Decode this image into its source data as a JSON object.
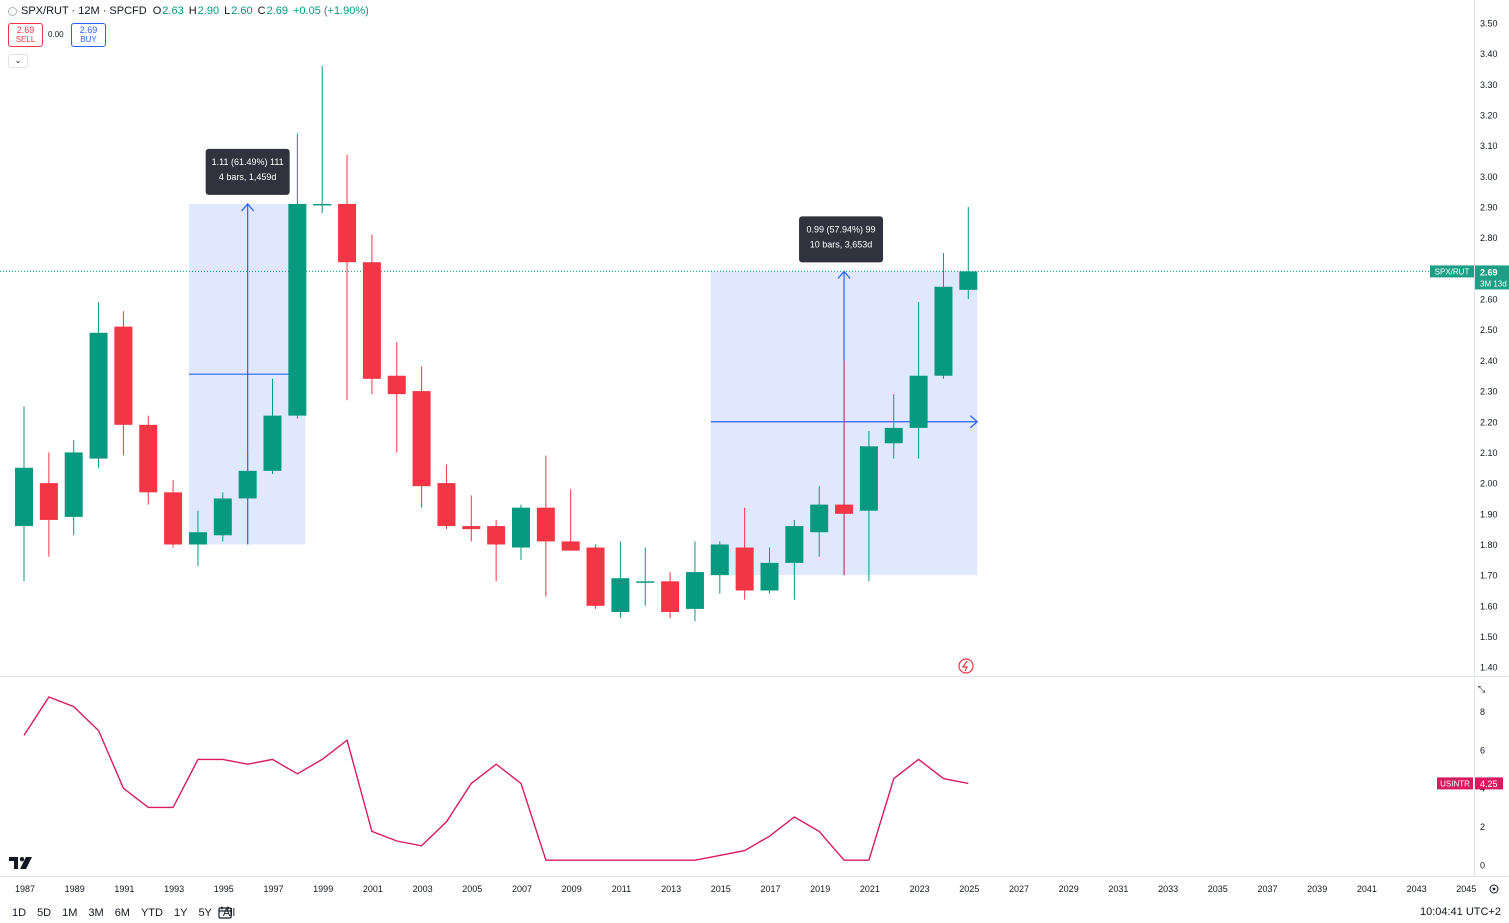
{
  "legend": {
    "symbol": "SPX/RUT · 12M · SPCFD",
    "o_label": "O",
    "o_value": "2.63",
    "h_label": "H",
    "h_value": "2.90",
    "l_label": "L",
    "l_value": "2.60",
    "c_label": "C",
    "c_value": "2.69",
    "change": "+0.05 (+1.90%)"
  },
  "trade": {
    "sell_price": "2.69",
    "sell_label": "SELL",
    "spread": "0.00",
    "buy_price": "2.69",
    "buy_label": "BUY"
  },
  "collapse_glyph": "⌄",
  "timeframes": [
    "1D",
    "5D",
    "1M",
    "3M",
    "6M",
    "YTD",
    "1Y",
    "5Y",
    "All"
  ],
  "clock": "10:04:41 UTC+2",
  "colors": {
    "up": "#089981",
    "down": "#f23645",
    "indicator": "#d81b60",
    "measure_fill": "#dde6fd",
    "measure_line": "#2962ff",
    "tag": "#1e9e85"
  },
  "chart_data": [
    {
      "type": "candlestick",
      "series_name": "SPX/RUT",
      "x_unit": "year",
      "candles": [
        {
          "x": 1987,
          "o": 1.86,
          "h": 2.25,
          "l": 1.68,
          "c": 2.05
        },
        {
          "x": 1988,
          "o": 2.0,
          "h": 2.1,
          "l": 1.76,
          "c": 1.88
        },
        {
          "x": 1989,
          "o": 1.89,
          "h": 2.14,
          "l": 1.83,
          "c": 2.1
        },
        {
          "x": 1990,
          "o": 2.08,
          "h": 2.59,
          "l": 2.05,
          "c": 2.49
        },
        {
          "x": 1991,
          "o": 2.51,
          "h": 2.56,
          "l": 2.09,
          "c": 2.19
        },
        {
          "x": 1992,
          "o": 2.19,
          "h": 2.22,
          "l": 1.93,
          "c": 1.97
        },
        {
          "x": 1993,
          "o": 1.97,
          "h": 2.01,
          "l": 1.79,
          "c": 1.8
        },
        {
          "x": 1994,
          "o": 1.8,
          "h": 1.91,
          "l": 1.73,
          "c": 1.84
        },
        {
          "x": 1995,
          "o": 1.83,
          "h": 1.97,
          "l": 1.81,
          "c": 1.95
        },
        {
          "x": 1996,
          "o": 1.95,
          "h": 2.1,
          "l": 1.8,
          "c": 2.04
        },
        {
          "x": 1997,
          "o": 2.04,
          "h": 2.34,
          "l": 2.03,
          "c": 2.22
        },
        {
          "x": 1998,
          "o": 2.22,
          "h": 3.14,
          "l": 2.21,
          "c": 2.91
        },
        {
          "x": 1999,
          "o": 2.91,
          "h": 3.36,
          "l": 2.88,
          "c": 2.91
        },
        {
          "x": 2000,
          "o": 2.91,
          "h": 3.07,
          "l": 2.27,
          "c": 2.72
        },
        {
          "x": 2001,
          "o": 2.72,
          "h": 2.81,
          "l": 2.29,
          "c": 2.34
        },
        {
          "x": 2002,
          "o": 2.35,
          "h": 2.46,
          "l": 2.1,
          "c": 2.29
        },
        {
          "x": 2003,
          "o": 2.3,
          "h": 2.38,
          "l": 1.92,
          "c": 1.99
        },
        {
          "x": 2004,
          "o": 2.0,
          "h": 2.06,
          "l": 1.85,
          "c": 1.86
        },
        {
          "x": 2005,
          "o": 1.86,
          "h": 1.96,
          "l": 1.81,
          "c": 1.85
        },
        {
          "x": 2006,
          "o": 1.86,
          "h": 1.88,
          "l": 1.68,
          "c": 1.8
        },
        {
          "x": 2007,
          "o": 1.79,
          "h": 1.93,
          "l": 1.75,
          "c": 1.92
        },
        {
          "x": 2008,
          "o": 1.92,
          "h": 2.09,
          "l": 1.63,
          "c": 1.81
        },
        {
          "x": 2009,
          "o": 1.81,
          "h": 1.98,
          "l": 1.78,
          "c": 1.78
        },
        {
          "x": 2010,
          "o": 1.79,
          "h": 1.8,
          "l": 1.59,
          "c": 1.6
        },
        {
          "x": 2011,
          "o": 1.58,
          "h": 1.81,
          "l": 1.56,
          "c": 1.69
        },
        {
          "x": 2012,
          "o": 1.68,
          "h": 1.79,
          "l": 1.6,
          "c": 1.68
        },
        {
          "x": 2013,
          "o": 1.68,
          "h": 1.71,
          "l": 1.56,
          "c": 1.58
        },
        {
          "x": 2014,
          "o": 1.59,
          "h": 1.81,
          "l": 1.55,
          "c": 1.71
        },
        {
          "x": 2015,
          "o": 1.7,
          "h": 1.81,
          "l": 1.64,
          "c": 1.8
        },
        {
          "x": 2016,
          "o": 1.79,
          "h": 1.92,
          "l": 1.62,
          "c": 1.65
        },
        {
          "x": 2017,
          "o": 1.65,
          "h": 1.79,
          "l": 1.64,
          "c": 1.74
        },
        {
          "x": 2018,
          "o": 1.74,
          "h": 1.88,
          "l": 1.62,
          "c": 1.86
        },
        {
          "x": 2019,
          "o": 1.84,
          "h": 1.99,
          "l": 1.76,
          "c": 1.93
        },
        {
          "x": 2020,
          "o": 1.93,
          "h": 2.4,
          "l": 1.7,
          "c": 1.9
        },
        {
          "x": 2021,
          "o": 1.91,
          "h": 2.17,
          "l": 1.68,
          "c": 2.12
        },
        {
          "x": 2022,
          "o": 2.13,
          "h": 2.29,
          "l": 2.08,
          "c": 2.18
        },
        {
          "x": 2023,
          "o": 2.18,
          "h": 2.59,
          "l": 2.08,
          "c": 2.35
        },
        {
          "x": 2024,
          "o": 2.35,
          "h": 2.75,
          "l": 2.34,
          "c": 2.64
        },
        {
          "x": 2025,
          "o": 2.63,
          "h": 2.9,
          "l": 2.6,
          "c": 2.69
        }
      ],
      "y_ticks": [
        "1.40",
        "1.50",
        "1.60",
        "1.70",
        "1.80",
        "1.90",
        "2.00",
        "2.10",
        "2.20",
        "2.30",
        "2.40",
        "2.50",
        "2.60",
        "2.70",
        "2.80",
        "2.90",
        "3.00",
        "3.10",
        "3.20",
        "3.30",
        "3.40",
        "3.50"
      ],
      "ylim": [
        1.35,
        3.55
      ],
      "x_ticks": [
        "1987",
        "1989",
        "1991",
        "1993",
        "1995",
        "1997",
        "1999",
        "2001",
        "2003",
        "2005",
        "2007",
        "2009",
        "2011",
        "2013",
        "2015",
        "2017",
        "2019",
        "2021",
        "2023",
        "2025",
        "2027",
        "2029",
        "2031",
        "2033",
        "2035",
        "2037",
        "2039",
        "2041",
        "2043",
        "2045"
      ],
      "xlim": [
        1986.5,
        2046.3
      ],
      "last_price_tag": {
        "symbol": "SPX/RUT",
        "value": "2.69",
        "countdown": "3M 13d",
        "y": 2.69
      },
      "measurements": [
        {
          "x_start": 1994,
          "x_end": 1997.95,
          "y_low": 1.8,
          "y_high": 2.91,
          "x_arrow": 1996,
          "line1": "1.11 (61.49%) 111",
          "line2": "4 bars, 1,459d"
        },
        {
          "x_start": 2015,
          "x_end": 2025,
          "y_low": 1.7,
          "y_high": 2.69,
          "x_arrow": 2020,
          "y_horizontal": 2.2,
          "line1": "0.99 (57.94%) 99",
          "line2": "10 bars, 3,653d"
        }
      ]
    },
    {
      "type": "line",
      "series_name": "USINTR",
      "x": [
        1987,
        1988,
        1989,
        1990,
        1991,
        1992,
        1993,
        1994,
        1995,
        1996,
        1997,
        1998,
        1999,
        2000,
        2001,
        2002,
        2003,
        2004,
        2005,
        2006,
        2007,
        2008,
        2009,
        2010,
        2011,
        2012,
        2013,
        2014,
        2015,
        2016,
        2017,
        2018,
        2019,
        2020,
        2021,
        2022,
        2023,
        2024,
        2025
      ],
      "y": [
        6.75,
        8.75,
        8.25,
        7.0,
        4.0,
        3.0,
        3.0,
        5.5,
        5.5,
        5.25,
        5.5,
        4.75,
        5.5,
        6.5,
        1.75,
        1.25,
        1.0,
        2.25,
        4.25,
        5.25,
        4.25,
        0.25,
        0.25,
        0.25,
        0.25,
        0.25,
        0.25,
        0.25,
        0.5,
        0.75,
        1.5,
        2.5,
        1.75,
        0.25,
        0.25,
        4.5,
        5.5,
        4.5,
        4.25
      ],
      "y_ticks": [
        "0",
        "2",
        "4",
        "6",
        "8"
      ],
      "ylim": [
        -0.4,
        9.5
      ],
      "last_value_tag": {
        "symbol": "USINTR",
        "value": "4.25",
        "y": 4.25
      }
    }
  ]
}
